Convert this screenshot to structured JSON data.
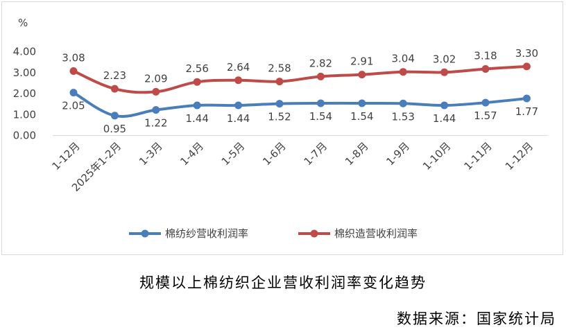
{
  "chart_data": {
    "type": "line",
    "ylabel": "%",
    "ylim": [
      0,
      4
    ],
    "yticks": [
      "0.00",
      "1.00",
      "2.00",
      "3.00",
      "4.00"
    ],
    "grid": false,
    "legend": "bottom",
    "categories": [
      "1-12月",
      "2025年1-2月",
      "1-3月",
      "1-4月",
      "1-5月",
      "1-6月",
      "1-7月",
      "1-8月",
      "1-9月",
      "1-10月",
      "1-11月",
      "1-12月"
    ],
    "series": [
      {
        "name": "棉纺纱营收利润率",
        "color": "#4a7ebb",
        "values": [
          2.05,
          0.95,
          1.22,
          1.44,
          1.44,
          1.52,
          1.54,
          1.54,
          1.53,
          1.44,
          1.57,
          1.77
        ],
        "labels": [
          "2.05",
          "0.95",
          "1.22",
          "1.44",
          "1.44",
          "1.52",
          "1.54",
          "1.54",
          "1.53",
          "1.44",
          "1.57",
          "1.77"
        ]
      },
      {
        "name": "棉织造营收利润率",
        "color": "#be4b48",
        "values": [
          3.08,
          2.23,
          2.09,
          2.56,
          2.64,
          2.58,
          2.82,
          2.91,
          3.04,
          3.02,
          3.18,
          3.3
        ],
        "labels": [
          "3.08",
          "2.23",
          "2.09",
          "2.56",
          "2.64",
          "2.58",
          "2.82",
          "2.91",
          "3.04",
          "3.02",
          "3.18",
          "3.30"
        ]
      }
    ]
  },
  "caption": "规模以上棉纺织企业营收利润率变化趋势",
  "source": "数据来源：国家统计局"
}
